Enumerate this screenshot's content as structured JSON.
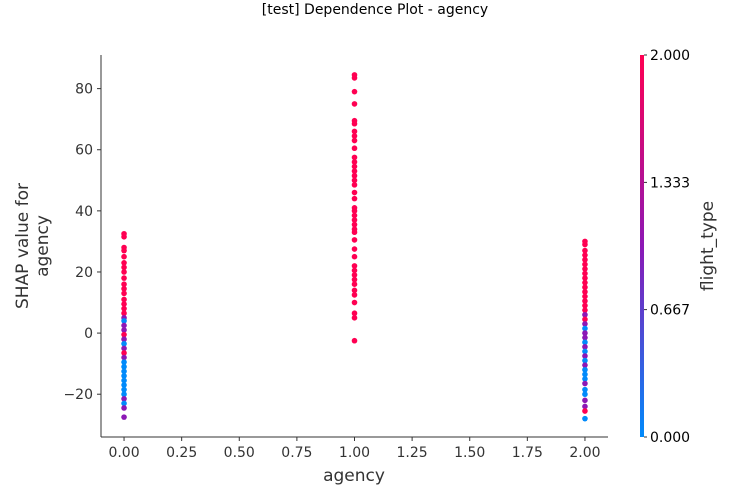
{
  "chart_data": {
    "type": "scatter",
    "title": "[test] Dependence Plot - agency",
    "xlabel": "agency",
    "ylabel": "SHAP value for\nagency",
    "xlim": [
      -0.1,
      2.1
    ],
    "ylim": [
      -34,
      91
    ],
    "xticks": [
      0.0,
      0.25,
      0.5,
      0.75,
      1.0,
      1.25,
      1.5,
      1.75,
      2.0
    ],
    "xtick_labels": [
      "0.00",
      "0.25",
      "0.50",
      "0.75",
      "1.00",
      "1.25",
      "1.50",
      "1.75",
      "2.00"
    ],
    "yticks": [
      -20,
      0,
      20,
      40,
      60,
      80
    ],
    "ytick_labels": [
      "−20",
      "0",
      "20",
      "40",
      "60",
      "80"
    ],
    "grid": false,
    "colorbar": {
      "label": "flight_type",
      "range": [
        0,
        2
      ],
      "ticks": [
        0.0,
        0.667,
        1.333,
        2.0
      ],
      "tick_labels": [
        "0.000",
        "0.667",
        "1.333",
        "2.000"
      ],
      "colors": [
        "#008afb",
        "#8c18b5",
        "#ff0052"
      ]
    },
    "points": [
      {
        "x": 0,
        "y": 32.5,
        "c": 2
      },
      {
        "x": 0,
        "y": 31.5,
        "c": 2
      },
      {
        "x": 0,
        "y": 28.0,
        "c": 2
      },
      {
        "x": 0,
        "y": 27.0,
        "c": 2
      },
      {
        "x": 0,
        "y": 25.0,
        "c": 2
      },
      {
        "x": 0,
        "y": 23.0,
        "c": 2
      },
      {
        "x": 0,
        "y": 21.5,
        "c": 2
      },
      {
        "x": 0,
        "y": 20.0,
        "c": 2
      },
      {
        "x": 0,
        "y": 18.0,
        "c": 2
      },
      {
        "x": 0,
        "y": 16.0,
        "c": 2
      },
      {
        "x": 0,
        "y": 14.5,
        "c": 2
      },
      {
        "x": 0,
        "y": 13.0,
        "c": 2
      },
      {
        "x": 0,
        "y": 11.0,
        "c": 2
      },
      {
        "x": 0,
        "y": 9.5,
        "c": 2
      },
      {
        "x": 0,
        "y": 8.0,
        "c": 2
      },
      {
        "x": 0,
        "y": 6.5,
        "c": 2
      },
      {
        "x": 0,
        "y": 5.0,
        "c": 1
      },
      {
        "x": 0,
        "y": 4.0,
        "c": 0
      },
      {
        "x": 0,
        "y": 2.5,
        "c": 1
      },
      {
        "x": 0,
        "y": 1.0,
        "c": 1
      },
      {
        "x": 0,
        "y": -0.5,
        "c": 2
      },
      {
        "x": 0,
        "y": -2.0,
        "c": 1
      },
      {
        "x": 0,
        "y": -3.5,
        "c": 0
      },
      {
        "x": 0,
        "y": -5.0,
        "c": 1
      },
      {
        "x": 0,
        "y": -6.5,
        "c": 2
      },
      {
        "x": 0,
        "y": -8.0,
        "c": 1
      },
      {
        "x": 0,
        "y": -9.5,
        "c": 0
      },
      {
        "x": 0,
        "y": -11.0,
        "c": 0
      },
      {
        "x": 0,
        "y": -12.5,
        "c": 0
      },
      {
        "x": 0,
        "y": -14.0,
        "c": 0
      },
      {
        "x": 0,
        "y": -15.5,
        "c": 0
      },
      {
        "x": 0,
        "y": -17.0,
        "c": 0
      },
      {
        "x": 0,
        "y": -18.5,
        "c": 0
      },
      {
        "x": 0,
        "y": -20.0,
        "c": 0
      },
      {
        "x": 0,
        "y": -21.5,
        "c": 1
      },
      {
        "x": 0,
        "y": -23.0,
        "c": 0
      },
      {
        "x": 0,
        "y": -24.5,
        "c": 1
      },
      {
        "x": 0,
        "y": -27.5,
        "c": 1
      },
      {
        "x": 1,
        "y": 84.5,
        "c": 2
      },
      {
        "x": 1,
        "y": 83.5,
        "c": 2
      },
      {
        "x": 1,
        "y": 79.0,
        "c": 2
      },
      {
        "x": 1,
        "y": 75.0,
        "c": 2
      },
      {
        "x": 1,
        "y": 69.5,
        "c": 2
      },
      {
        "x": 1,
        "y": 68.5,
        "c": 2
      },
      {
        "x": 1,
        "y": 66.0,
        "c": 2
      },
      {
        "x": 1,
        "y": 64.5,
        "c": 2
      },
      {
        "x": 1,
        "y": 63.0,
        "c": 2
      },
      {
        "x": 1,
        "y": 60.5,
        "c": 2
      },
      {
        "x": 1,
        "y": 57.5,
        "c": 2
      },
      {
        "x": 1,
        "y": 56.0,
        "c": 2
      },
      {
        "x": 1,
        "y": 54.5,
        "c": 2
      },
      {
        "x": 1,
        "y": 53.0,
        "c": 2
      },
      {
        "x": 1,
        "y": 51.5,
        "c": 2
      },
      {
        "x": 1,
        "y": 50.0,
        "c": 2
      },
      {
        "x": 1,
        "y": 48.5,
        "c": 2
      },
      {
        "x": 1,
        "y": 46.0,
        "c": 2
      },
      {
        "x": 1,
        "y": 44.0,
        "c": 2
      },
      {
        "x": 1,
        "y": 41.0,
        "c": 2
      },
      {
        "x": 1,
        "y": 40.0,
        "c": 2
      },
      {
        "x": 1,
        "y": 38.5,
        "c": 2
      },
      {
        "x": 1,
        "y": 37.0,
        "c": 2
      },
      {
        "x": 1,
        "y": 35.5,
        "c": 2
      },
      {
        "x": 1,
        "y": 34.0,
        "c": 2
      },
      {
        "x": 1,
        "y": 33.0,
        "c": 2
      },
      {
        "x": 1,
        "y": 30.5,
        "c": 2
      },
      {
        "x": 1,
        "y": 27.5,
        "c": 2
      },
      {
        "x": 1,
        "y": 25.0,
        "c": 2
      },
      {
        "x": 1,
        "y": 22.0,
        "c": 2
      },
      {
        "x": 1,
        "y": 20.5,
        "c": 2
      },
      {
        "x": 1,
        "y": 19.0,
        "c": 2
      },
      {
        "x": 1,
        "y": 17.5,
        "c": 2
      },
      {
        "x": 1,
        "y": 16.0,
        "c": 2
      },
      {
        "x": 1,
        "y": 14.0,
        "c": 2
      },
      {
        "x": 1,
        "y": 12.5,
        "c": 2
      },
      {
        "x": 1,
        "y": 10.0,
        "c": 2
      },
      {
        "x": 1,
        "y": 6.5,
        "c": 2
      },
      {
        "x": 1,
        "y": 5.0,
        "c": 2
      },
      {
        "x": 1,
        "y": -2.5,
        "c": 2
      },
      {
        "x": 2,
        "y": 30.0,
        "c": 2
      },
      {
        "x": 2,
        "y": 29.0,
        "c": 2
      },
      {
        "x": 2,
        "y": 27.0,
        "c": 2
      },
      {
        "x": 2,
        "y": 25.5,
        "c": 2
      },
      {
        "x": 2,
        "y": 24.0,
        "c": 2
      },
      {
        "x": 2,
        "y": 22.5,
        "c": 2
      },
      {
        "x": 2,
        "y": 21.0,
        "c": 2
      },
      {
        "x": 2,
        "y": 19.5,
        "c": 2
      },
      {
        "x": 2,
        "y": 18.0,
        "c": 2
      },
      {
        "x": 2,
        "y": 16.5,
        "c": 2
      },
      {
        "x": 2,
        "y": 15.0,
        "c": 2
      },
      {
        "x": 2,
        "y": 13.5,
        "c": 2
      },
      {
        "x": 2,
        "y": 12.0,
        "c": 2
      },
      {
        "x": 2,
        "y": 10.5,
        "c": 2
      },
      {
        "x": 2,
        "y": 9.0,
        "c": 2
      },
      {
        "x": 2,
        "y": 7.5,
        "c": 2
      },
      {
        "x": 2,
        "y": 6.0,
        "c": 1
      },
      {
        "x": 2,
        "y": 4.5,
        "c": 2
      },
      {
        "x": 2,
        "y": 3.0,
        "c": 1
      },
      {
        "x": 2,
        "y": 1.5,
        "c": 0
      },
      {
        "x": 2,
        "y": 0.0,
        "c": 1
      },
      {
        "x": 2,
        "y": -1.5,
        "c": 1
      },
      {
        "x": 2,
        "y": -3.0,
        "c": 0
      },
      {
        "x": 2,
        "y": -4.5,
        "c": 1
      },
      {
        "x": 2,
        "y": -6.0,
        "c": 0
      },
      {
        "x": 2,
        "y": -7.5,
        "c": 1
      },
      {
        "x": 2,
        "y": -9.0,
        "c": 0
      },
      {
        "x": 2,
        "y": -10.5,
        "c": 1
      },
      {
        "x": 2,
        "y": -12.0,
        "c": 0
      },
      {
        "x": 2,
        "y": -13.5,
        "c": 0
      },
      {
        "x": 2,
        "y": -15.0,
        "c": 0
      },
      {
        "x": 2,
        "y": -16.5,
        "c": 1
      },
      {
        "x": 2,
        "y": -18.5,
        "c": 0
      },
      {
        "x": 2,
        "y": -20.0,
        "c": 0
      },
      {
        "x": 2,
        "y": -22.0,
        "c": 1
      },
      {
        "x": 2,
        "y": -24.0,
        "c": 1
      },
      {
        "x": 2,
        "y": -25.5,
        "c": 2
      },
      {
        "x": 2,
        "y": -28.0,
        "c": 0
      }
    ]
  }
}
